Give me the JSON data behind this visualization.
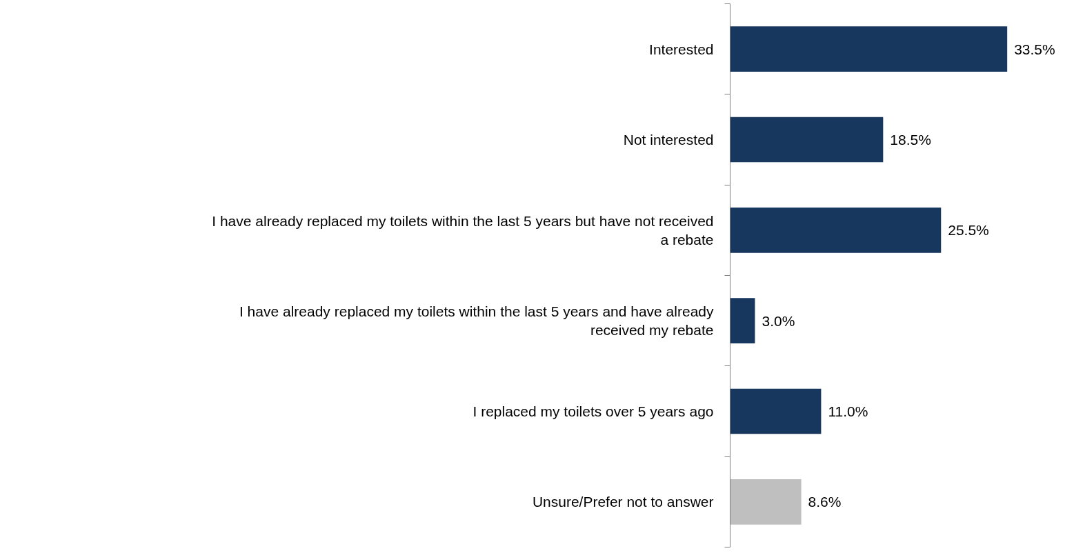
{
  "chart_data": {
    "type": "bar",
    "orientation": "horizontal",
    "categories": [
      "Interested",
      "Not interested",
      "I have already replaced my toilets within the last 5 years but have not received a rebate",
      "I have already replaced my toilets within the last 5 years and have already received my rebate",
      "I replaced my toilets over 5 years ago",
      "Unsure/Prefer not to answer"
    ],
    "values": [
      33.5,
      18.5,
      25.5,
      3.0,
      11.0,
      8.6
    ],
    "value_labels": [
      "33.5%",
      "18.5%",
      "25.5%",
      "3.0%",
      "11.0%",
      "8.6%"
    ],
    "colors": [
      "#17375e",
      "#17375e",
      "#17375e",
      "#17375e",
      "#17375e",
      "#bfbfbf"
    ],
    "grid": false
  }
}
